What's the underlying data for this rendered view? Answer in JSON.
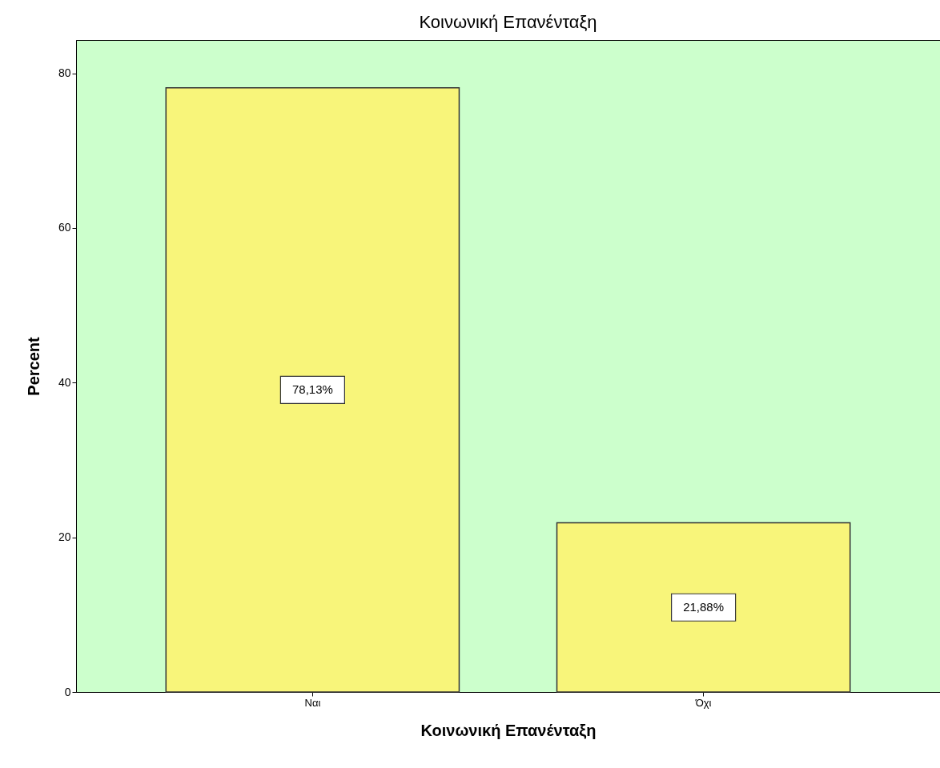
{
  "chart_data": {
    "type": "bar",
    "title": "Κοινωνική Επανένταξη",
    "xlabel": "Κοινωνική Επανένταξη",
    "ylabel": "Percent",
    "categories": [
      "Ναι",
      "Όχι"
    ],
    "values": [
      78.13,
      21.88
    ],
    "value_labels": [
      "78,13%",
      "21,88%"
    ],
    "color": "#f8f57a",
    "ylim": [
      0,
      84.3
    ],
    "yticks": [
      0,
      20,
      40,
      60,
      80
    ],
    "grid": false
  }
}
